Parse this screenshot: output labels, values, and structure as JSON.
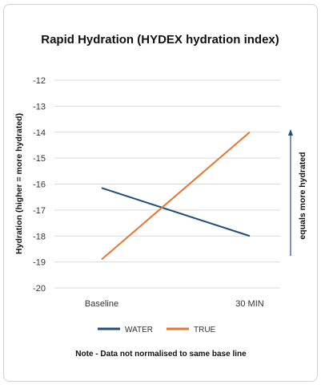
{
  "chart_data": {
    "type": "line",
    "title": "Rapid Hydration (HYDEX hydration index)",
    "ylabel": "Hydration (higher = more hydrated)",
    "xlabel": "",
    "categories": [
      "Baseline",
      "30 MIN"
    ],
    "ylim": [
      -20,
      -12
    ],
    "yticks": [
      -12,
      -13,
      -14,
      -15,
      -16,
      -17,
      -18,
      -19,
      -20
    ],
    "series": [
      {
        "name": "WATER",
        "values": [
          -16.15,
          -18
        ],
        "color": "#1f4e79"
      },
      {
        "name": "TRUE",
        "values": [
          -18.9,
          -14
        ],
        "color": "#e8742f"
      }
    ],
    "annotation": "equals more hydrated",
    "annotation_arrow_color": "#1f4e79",
    "note": "Note - Data not normalised to same base line",
    "grid": true,
    "legend_position": "bottom"
  }
}
